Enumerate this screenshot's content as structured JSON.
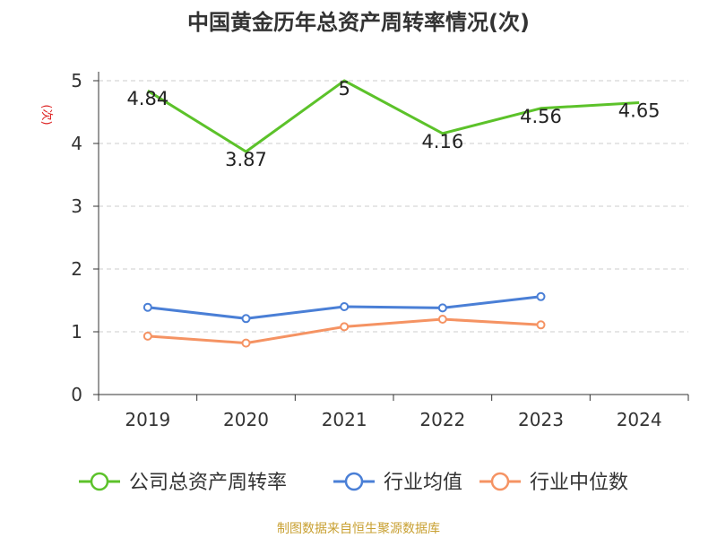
{
  "chart_data": {
    "type": "line",
    "title": "中国黄金历年总资产周转率情况(次)",
    "ylabel": "(次)",
    "xlabel": "",
    "categories": [
      "2019",
      "2020",
      "2021",
      "2022",
      "2023",
      "2024"
    ],
    "ylim": [
      0,
      5
    ],
    "yticks": [
      0,
      1,
      2,
      3,
      4,
      5
    ],
    "grid": true,
    "legend_position": "bottom",
    "series": [
      {
        "name": "公司总资产周转率",
        "values": [
          4.84,
          3.87,
          5,
          4.16,
          4.56,
          4.65
        ],
        "color": "#5cc22a",
        "labels": [
          "4.84",
          "3.87",
          "5",
          "4.16",
          "4.56",
          "4.65"
        ]
      },
      {
        "name": "行业均值",
        "values": [
          1.39,
          1.21,
          1.4,
          1.38,
          1.56,
          null
        ],
        "color": "#4a7fd6"
      },
      {
        "name": "行业中位数",
        "values": [
          0.93,
          0.82,
          1.08,
          1.2,
          1.11,
          null
        ],
        "color": "#f59363"
      }
    ]
  },
  "footer": {
    "source": "制图数据来自恒生聚源数据库"
  },
  "colors": {
    "ylabel": "#dd2222",
    "footer": "#c8a032",
    "axis": "#333333",
    "grid": "#cccccc"
  }
}
